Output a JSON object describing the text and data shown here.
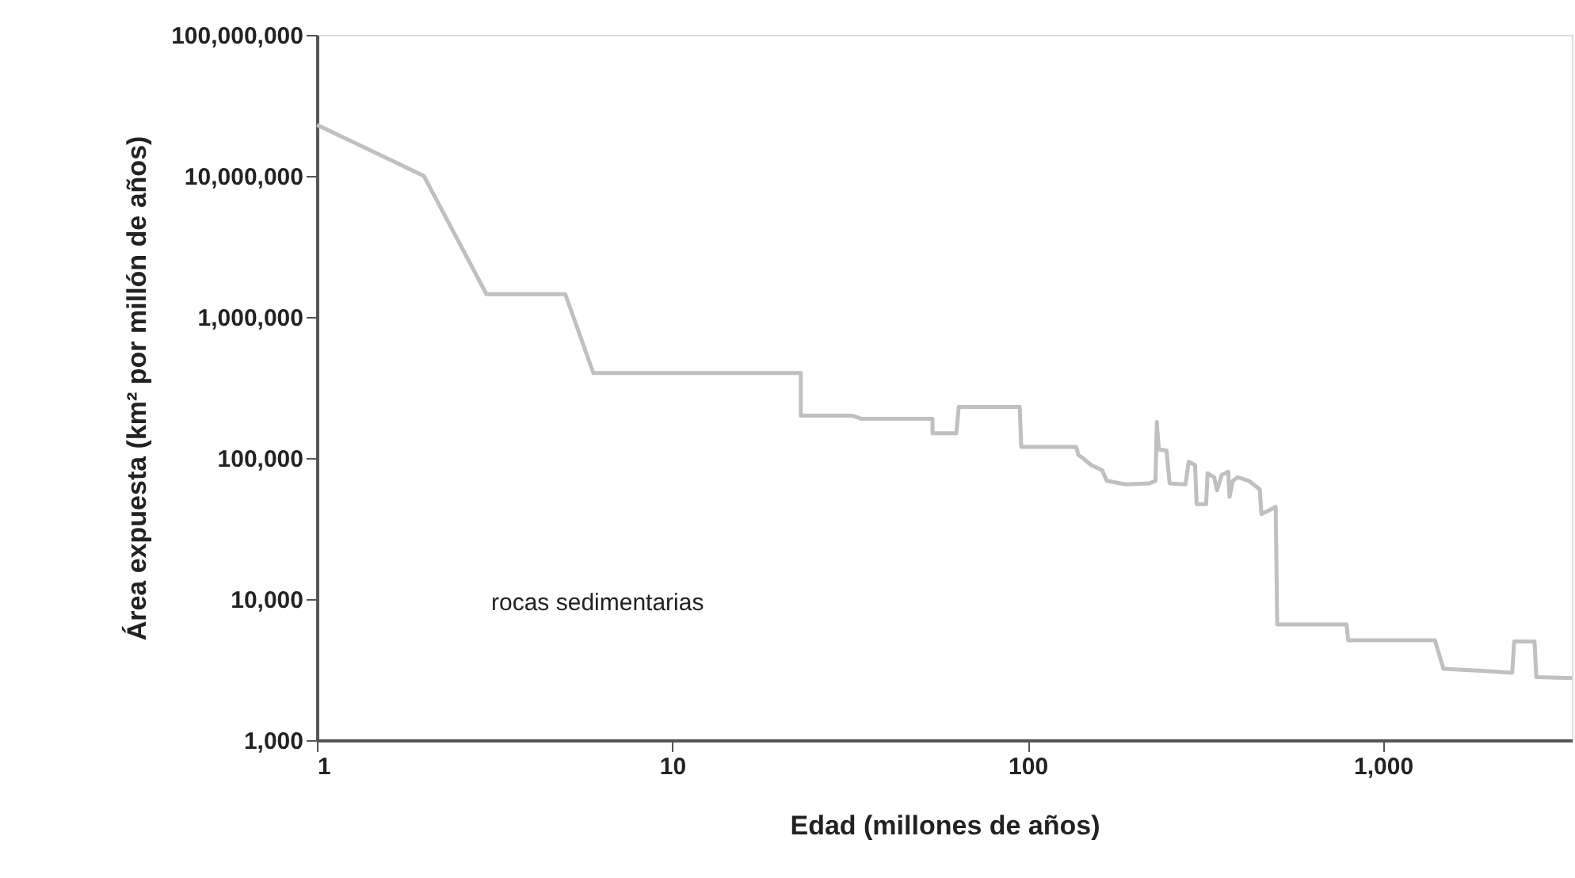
{
  "chart_data": {
    "type": "line",
    "xlabel": "Edad (millones de años)",
    "ylabel": "Área expuesta (km² por millón de años)",
    "log": "xy",
    "grid": false,
    "xlim": [
      1,
      3400
    ],
    "ylim": [
      1000,
      100000000
    ],
    "xticks": [
      1,
      10,
      100,
      {
        "value": 1000,
        "label": "1,000"
      }
    ],
    "yticks": [
      {
        "value": 1000,
        "label": "1,000"
      },
      {
        "value": 10000,
        "label": "10,000"
      },
      {
        "value": 100000,
        "label": "100,000"
      },
      {
        "value": 1000000,
        "label": "1,000,000"
      },
      {
        "value": 10000000,
        "label": "10,000,000"
      },
      {
        "value": 100000000,
        "label": "100,000,000"
      }
    ],
    "annotations": [
      "rocas sedimentarias"
    ],
    "x": [
      1,
      2,
      3,
      5,
      6,
      23,
      23,
      32,
      34,
      54,
      54,
      63,
      64,
      95,
      96,
      137,
      139,
      143,
      151,
      162,
      167,
      189,
      220,
      229,
      231,
      234,
      246,
      251,
      278,
      284,
      296,
      299,
      318,
      321,
      335,
      341,
      352,
      367,
      370,
      378,
      390,
      419,
      450,
      455,
      499,
      504,
      790,
      798,
      1400,
      1480,
      1890,
      2310,
      2340,
      2670,
      2700,
      3400
    ],
    "series": [
      {
        "color": "#c0c0c0",
        "line_style": "solid",
        "values": [
          23000000,
          10000000,
          1450000,
          1450000,
          400000,
          400000,
          200000,
          200000,
          190000,
          190000,
          150000,
          150000,
          230000,
          230000,
          120000,
          120000,
          105000,
          100000,
          89000,
          82000,
          69000,
          65000,
          66000,
          69000,
          180000,
          115000,
          113000,
          66000,
          65000,
          94000,
          89000,
          47000,
          47000,
          78000,
          73000,
          59000,
          76000,
          80000,
          53000,
          69000,
          73000,
          69000,
          60000,
          40000,
          45000,
          6600,
          6600,
          5100,
          5100,
          3200,
          3100,
          3000,
          5000,
          5000,
          2800,
          2750
        ]
      }
    ]
  }
}
